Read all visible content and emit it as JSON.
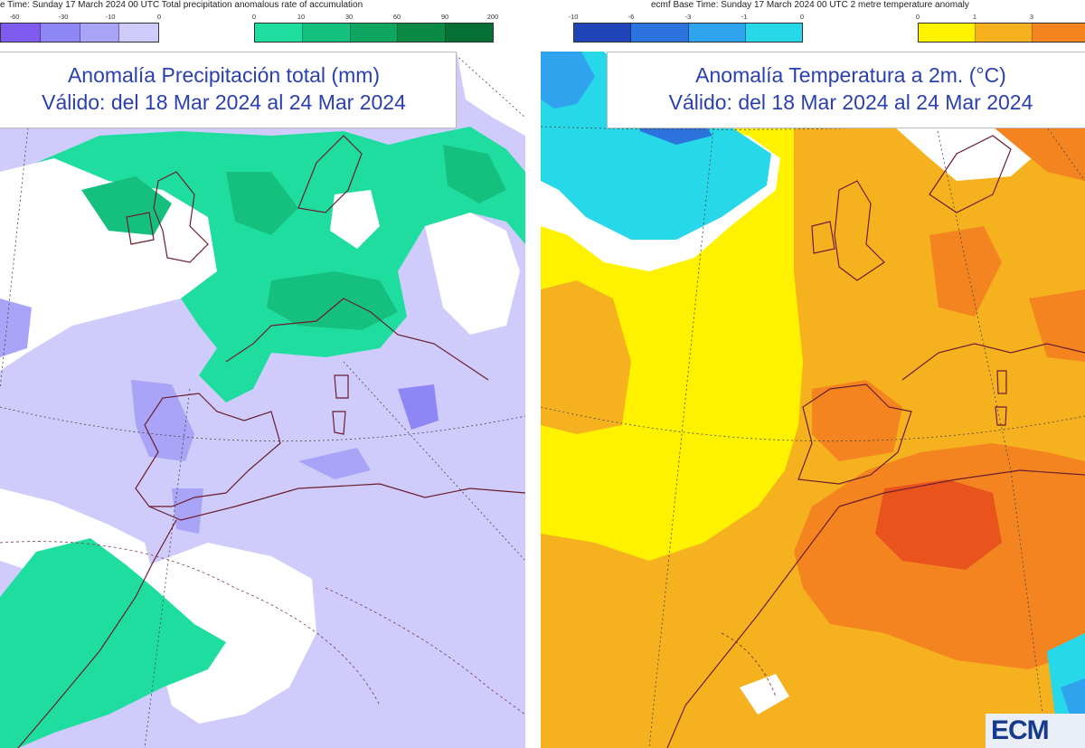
{
  "left": {
    "header": "e Time: Sunday 17 March 2024 00 UTC Total precipitation anomalous rate of accumulation",
    "neg_ticks": [
      "-60",
      "-30",
      "-10",
      "0"
    ],
    "pos_ticks": [
      "0",
      "10",
      "30",
      "60",
      "90",
      "200"
    ],
    "neg_colors": [
      "#7f5bf0",
      "#8f86f5",
      "#a9a4f7",
      "#cfcbfb"
    ],
    "pos_colors": [
      "#1fdd9f",
      "#15c07f",
      "#0ea55f",
      "#0a8a45",
      "#077035",
      "#05561f"
    ],
    "title": "Anomalía Precipitación total (mm)",
    "subtitle": "Válido: del 18 Mar 2024 al 24 Mar 2024"
  },
  "right": {
    "header": "ecmf  Base Time: Sunday 17 March 2024 00 UTC 2 metre temperature anomaly",
    "neg_ticks": [
      "-10",
      "-6",
      "-3",
      "-1",
      "0"
    ],
    "pos_ticks": [
      "0",
      "1",
      "3"
    ],
    "neg_colors": [
      "#1f45b8",
      "#2d73dd",
      "#2fa3ee",
      "#27d9e8"
    ],
    "pos_colors": [
      "#fff200",
      "#f6b21e",
      "#f38420"
    ],
    "title": "Anomalía Temperatura a 2m. (°C)",
    "subtitle": "Válido: del 18 Mar 2024 al 24 Mar 2024",
    "logo": "ECM"
  }
}
